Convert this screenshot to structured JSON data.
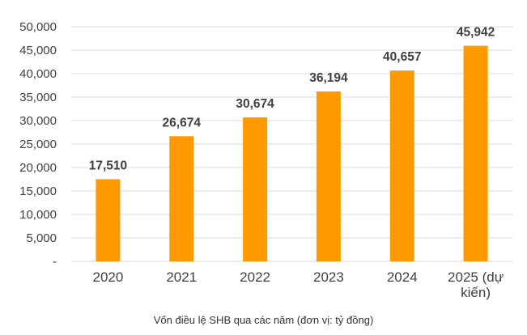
{
  "caption": "Vốn điều lệ SHB qua các năm (đơn vị: tỷ đồng)",
  "chart_data": {
    "type": "bar",
    "title": "",
    "xlabel": "",
    "ylabel": "",
    "categories": [
      "2020",
      "2021",
      "2022",
      "2023",
      "2024",
      "2025 (dự kiến)"
    ],
    "values": [
      17510,
      26674,
      30674,
      36194,
      40657,
      45942
    ],
    "data_labels": [
      "17,510",
      "26,674",
      "30,674",
      "36,194",
      "40,657",
      "45,942"
    ],
    "ylim": [
      0,
      50000
    ],
    "yticks": [
      0,
      5000,
      10000,
      15000,
      20000,
      25000,
      30000,
      35000,
      40000,
      45000,
      50000
    ],
    "ytick_labels": [
      "-",
      "5,000",
      "10,000",
      "15,000",
      "20,000",
      "25,000",
      "30,000",
      "35,000",
      "40,000",
      "45,000",
      "50,000"
    ],
    "grid": true,
    "legend": "none",
    "bar_color": "#FF9900",
    "grid_color": "#D9D9D9"
  }
}
